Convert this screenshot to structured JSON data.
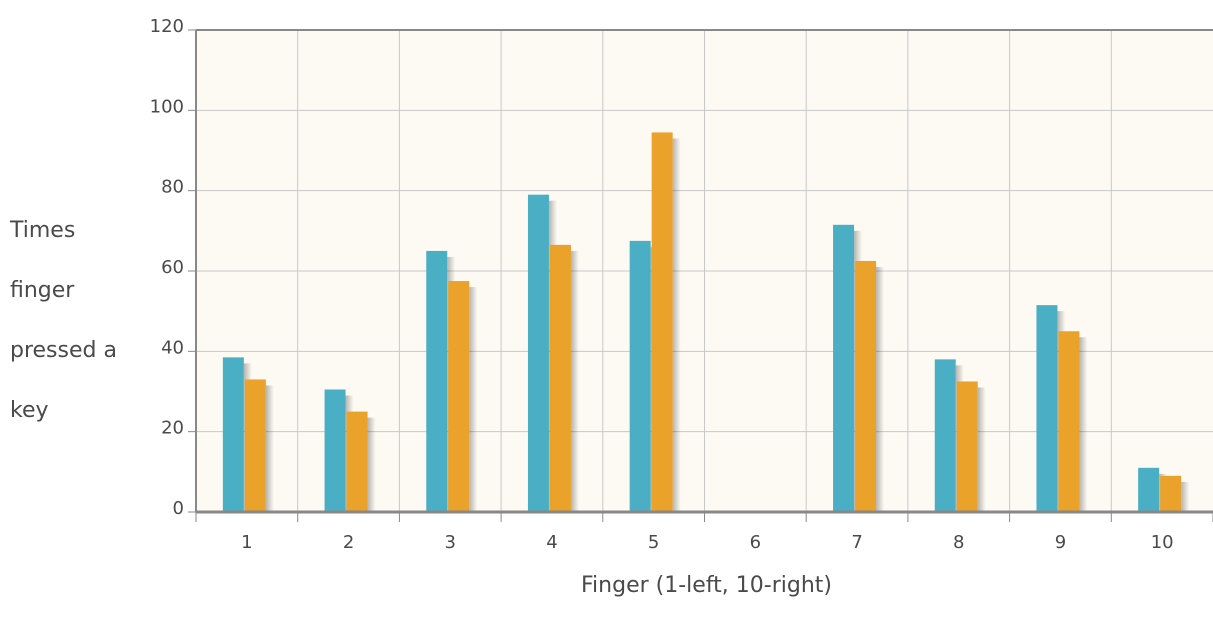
{
  "chart_data": {
    "type": "bar",
    "title": "",
    "xlabel": "Finger (1-left, 10-right)",
    "ylabel": "Times finger pressed a key",
    "ylabel_lines": [
      "Times",
      "finger",
      "pressed a",
      "key"
    ],
    "categories": [
      "1",
      "2",
      "3",
      "4",
      "5",
      "6",
      "7",
      "8",
      "9",
      "10"
    ],
    "yticks": [
      "0",
      "20",
      "40",
      "60",
      "80",
      "100",
      "120"
    ],
    "ylim": [
      0,
      120
    ],
    "grid": true,
    "legend": "none",
    "series": [
      {
        "color": "#4aafc4",
        "values": [
          38.5,
          30.5,
          65,
          79,
          67.5,
          0,
          71.5,
          38,
          51.5,
          11
        ]
      },
      {
        "color": "#eba22a",
        "values": [
          33,
          25,
          57.5,
          66.5,
          94.5,
          0,
          62.5,
          32.5,
          45,
          9
        ]
      }
    ],
    "colors": {
      "plot_background": "#fdfaf3",
      "grid": "#c8c8c8",
      "axis": "#888888",
      "text": "#4a4a4a"
    }
  }
}
